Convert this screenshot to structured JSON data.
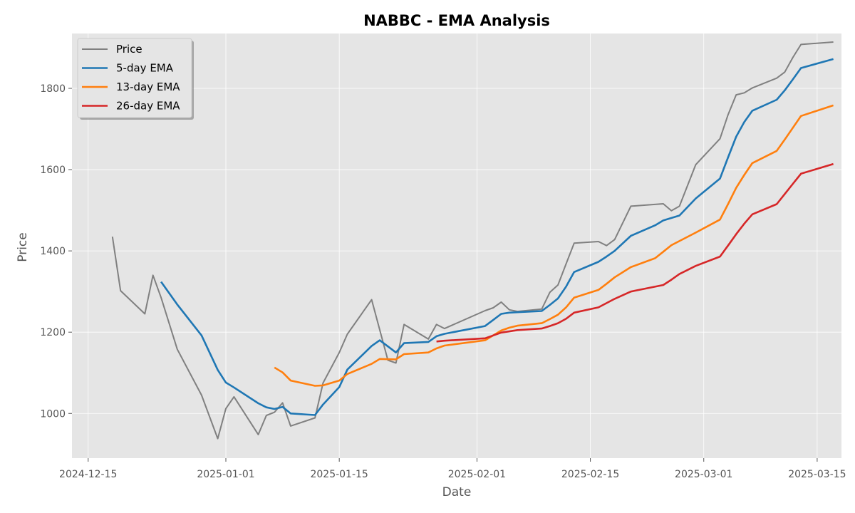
{
  "chart_data": {
    "type": "line",
    "title": "NABBC - EMA Analysis",
    "xlabel": "Date",
    "ylabel": "Price",
    "xlim": [
      "2024-12-13",
      "2025-03-18"
    ],
    "ylim": [
      890,
      1935
    ],
    "x_ticks": [
      "2024-12-15",
      "2025-01-01",
      "2025-01-15",
      "2025-02-01",
      "2025-02-15",
      "2025-03-01",
      "2025-03-15"
    ],
    "y_ticks": [
      1000,
      1200,
      1400,
      1600,
      1800
    ],
    "grid": true,
    "legend_position": "upper-left",
    "series": [
      {
        "name": "Price",
        "color": "#808080",
        "points": [
          [
            "2024-12-18",
            1435
          ],
          [
            "2024-12-19",
            1302
          ],
          [
            "2024-12-22",
            1245
          ],
          [
            "2024-12-23",
            1340
          ],
          [
            "2024-12-24",
            1285
          ],
          [
            "2024-12-26",
            1158
          ],
          [
            "2024-12-29",
            1045
          ],
          [
            "2024-12-31",
            938
          ],
          [
            "2025-01-01",
            1012
          ],
          [
            "2025-01-02",
            1041
          ],
          [
            "2025-01-05",
            948
          ],
          [
            "2025-01-06",
            995
          ],
          [
            "2025-01-07",
            1003
          ],
          [
            "2025-01-08",
            1026
          ],
          [
            "2025-01-09",
            969
          ],
          [
            "2025-01-12",
            989
          ],
          [
            "2025-01-13",
            1075
          ],
          [
            "2025-01-15",
            1150
          ],
          [
            "2025-01-16",
            1195
          ],
          [
            "2025-01-19",
            1280
          ],
          [
            "2025-01-21",
            1131
          ],
          [
            "2025-01-22",
            1124
          ],
          [
            "2025-01-23",
            1219
          ],
          [
            "2025-01-26",
            1183
          ],
          [
            "2025-01-27",
            1219
          ],
          [
            "2025-01-28",
            1209
          ],
          [
            "2025-02-02",
            1253
          ],
          [
            "2025-02-03",
            1260
          ],
          [
            "2025-02-04",
            1274
          ],
          [
            "2025-02-05",
            1255
          ],
          [
            "2025-02-06",
            1251
          ],
          [
            "2025-02-09",
            1257
          ],
          [
            "2025-02-10",
            1298
          ],
          [
            "2025-02-11",
            1316
          ],
          [
            "2025-02-12",
            1368
          ],
          [
            "2025-02-13",
            1419
          ],
          [
            "2025-02-16",
            1423
          ],
          [
            "2025-02-17",
            1413
          ],
          [
            "2025-02-18",
            1428
          ],
          [
            "2025-02-20",
            1510
          ],
          [
            "2025-02-24",
            1516
          ],
          [
            "2025-02-25",
            1499
          ],
          [
            "2025-02-26",
            1510
          ],
          [
            "2025-02-28",
            1612
          ],
          [
            "2025-03-03",
            1676
          ],
          [
            "2025-03-04",
            1735
          ],
          [
            "2025-03-05",
            1784
          ],
          [
            "2025-03-06",
            1789
          ],
          [
            "2025-03-07",
            1801
          ],
          [
            "2025-03-10",
            1825
          ],
          [
            "2025-03-11",
            1840
          ],
          [
            "2025-03-12",
            1876
          ],
          [
            "2025-03-13",
            1908
          ],
          [
            "2025-03-17",
            1914
          ]
        ]
      },
      {
        "name": "5-day EMA",
        "color": "#1f77b4",
        "points": [
          [
            "2024-12-24",
            1324
          ],
          [
            "2024-12-26",
            1268
          ],
          [
            "2024-12-29",
            1192
          ],
          [
            "2024-12-31",
            1107
          ],
          [
            "2025-01-01",
            1076
          ],
          [
            "2025-01-02",
            1064
          ],
          [
            "2025-01-05",
            1025
          ],
          [
            "2025-01-06",
            1015
          ],
          [
            "2025-01-07",
            1011
          ],
          [
            "2025-01-08",
            1016
          ],
          [
            "2025-01-09",
            1000
          ],
          [
            "2025-01-12",
            996
          ],
          [
            "2025-01-13",
            1022
          ],
          [
            "2025-01-15",
            1065
          ],
          [
            "2025-01-16",
            1108
          ],
          [
            "2025-01-19",
            1166
          ],
          [
            "2025-01-20",
            1180
          ],
          [
            "2025-01-22",
            1150
          ],
          [
            "2025-01-23",
            1173
          ],
          [
            "2025-01-26",
            1176
          ],
          [
            "2025-01-27",
            1190
          ],
          [
            "2025-01-28",
            1196
          ],
          [
            "2025-02-02",
            1215
          ],
          [
            "2025-02-03",
            1230
          ],
          [
            "2025-02-04",
            1245
          ],
          [
            "2025-02-05",
            1248
          ],
          [
            "2025-02-06",
            1249
          ],
          [
            "2025-02-09",
            1252
          ],
          [
            "2025-02-10",
            1267
          ],
          [
            "2025-02-11",
            1283
          ],
          [
            "2025-02-12",
            1312
          ],
          [
            "2025-02-13",
            1348
          ],
          [
            "2025-02-16",
            1373
          ],
          [
            "2025-02-17",
            1386
          ],
          [
            "2025-02-18",
            1400
          ],
          [
            "2025-02-20",
            1437
          ],
          [
            "2025-02-23",
            1463
          ],
          [
            "2025-02-24",
            1475
          ],
          [
            "2025-02-26",
            1487
          ],
          [
            "2025-02-28",
            1529
          ],
          [
            "2025-03-03",
            1578
          ],
          [
            "2025-03-04",
            1630
          ],
          [
            "2025-03-05",
            1681
          ],
          [
            "2025-03-06",
            1717
          ],
          [
            "2025-03-07",
            1745
          ],
          [
            "2025-03-10",
            1772
          ],
          [
            "2025-03-11",
            1795
          ],
          [
            "2025-03-12",
            1822
          ],
          [
            "2025-03-13",
            1850
          ],
          [
            "2025-03-17",
            1872
          ]
        ]
      },
      {
        "name": "13-day EMA",
        "color": "#ff7f0e",
        "points": [
          [
            "2025-01-07",
            1113
          ],
          [
            "2025-01-08",
            1101
          ],
          [
            "2025-01-09",
            1081
          ],
          [
            "2025-01-12",
            1068
          ],
          [
            "2025-01-13",
            1069
          ],
          [
            "2025-01-15",
            1081
          ],
          [
            "2025-01-16",
            1097
          ],
          [
            "2025-01-19",
            1122
          ],
          [
            "2025-01-20",
            1134
          ],
          [
            "2025-01-22",
            1133
          ],
          [
            "2025-01-23",
            1146
          ],
          [
            "2025-01-26",
            1150
          ],
          [
            "2025-01-27",
            1160
          ],
          [
            "2025-01-28",
            1167
          ],
          [
            "2025-02-02",
            1180
          ],
          [
            "2025-02-03",
            1192
          ],
          [
            "2025-02-04",
            1204
          ],
          [
            "2025-02-05",
            1211
          ],
          [
            "2025-02-06",
            1216
          ],
          [
            "2025-02-09",
            1222
          ],
          [
            "2025-02-10",
            1232
          ],
          [
            "2025-02-11",
            1243
          ],
          [
            "2025-02-12",
            1261
          ],
          [
            "2025-02-13",
            1285
          ],
          [
            "2025-02-16",
            1304
          ],
          [
            "2025-02-17",
            1319
          ],
          [
            "2025-02-18",
            1335
          ],
          [
            "2025-02-20",
            1360
          ],
          [
            "2025-02-23",
            1382
          ],
          [
            "2025-02-24",
            1398
          ],
          [
            "2025-02-25",
            1414
          ],
          [
            "2025-02-28",
            1445
          ],
          [
            "2025-03-03",
            1477
          ],
          [
            "2025-03-04",
            1515
          ],
          [
            "2025-03-05",
            1555
          ],
          [
            "2025-03-06",
            1587
          ],
          [
            "2025-03-07",
            1616
          ],
          [
            "2025-03-10",
            1646
          ],
          [
            "2025-03-11",
            1674
          ],
          [
            "2025-03-12",
            1703
          ],
          [
            "2025-03-13",
            1732
          ],
          [
            "2025-03-17",
            1758
          ]
        ]
      },
      {
        "name": "26-day EMA",
        "color": "#d62728",
        "points": [
          [
            "2025-01-27",
            1177
          ],
          [
            "2025-01-28",
            1179
          ],
          [
            "2025-02-02",
            1185
          ],
          [
            "2025-02-03",
            1192
          ],
          [
            "2025-02-04",
            1199
          ],
          [
            "2025-02-06",
            1205
          ],
          [
            "2025-02-09",
            1209
          ],
          [
            "2025-02-10",
            1215
          ],
          [
            "2025-02-11",
            1222
          ],
          [
            "2025-02-12",
            1233
          ],
          [
            "2025-02-13",
            1248
          ],
          [
            "2025-02-16",
            1261
          ],
          [
            "2025-02-18",
            1282
          ],
          [
            "2025-02-20",
            1300
          ],
          [
            "2025-02-24",
            1316
          ],
          [
            "2025-02-25",
            1329
          ],
          [
            "2025-02-26",
            1343
          ],
          [
            "2025-02-28",
            1363
          ],
          [
            "2025-03-03",
            1386
          ],
          [
            "2025-03-04",
            1413
          ],
          [
            "2025-03-05",
            1441
          ],
          [
            "2025-03-06",
            1467
          ],
          [
            "2025-03-07",
            1490
          ],
          [
            "2025-03-10",
            1515
          ],
          [
            "2025-03-11",
            1540
          ],
          [
            "2025-03-12",
            1565
          ],
          [
            "2025-03-13",
            1590
          ],
          [
            "2025-03-17",
            1614
          ]
        ]
      }
    ]
  }
}
